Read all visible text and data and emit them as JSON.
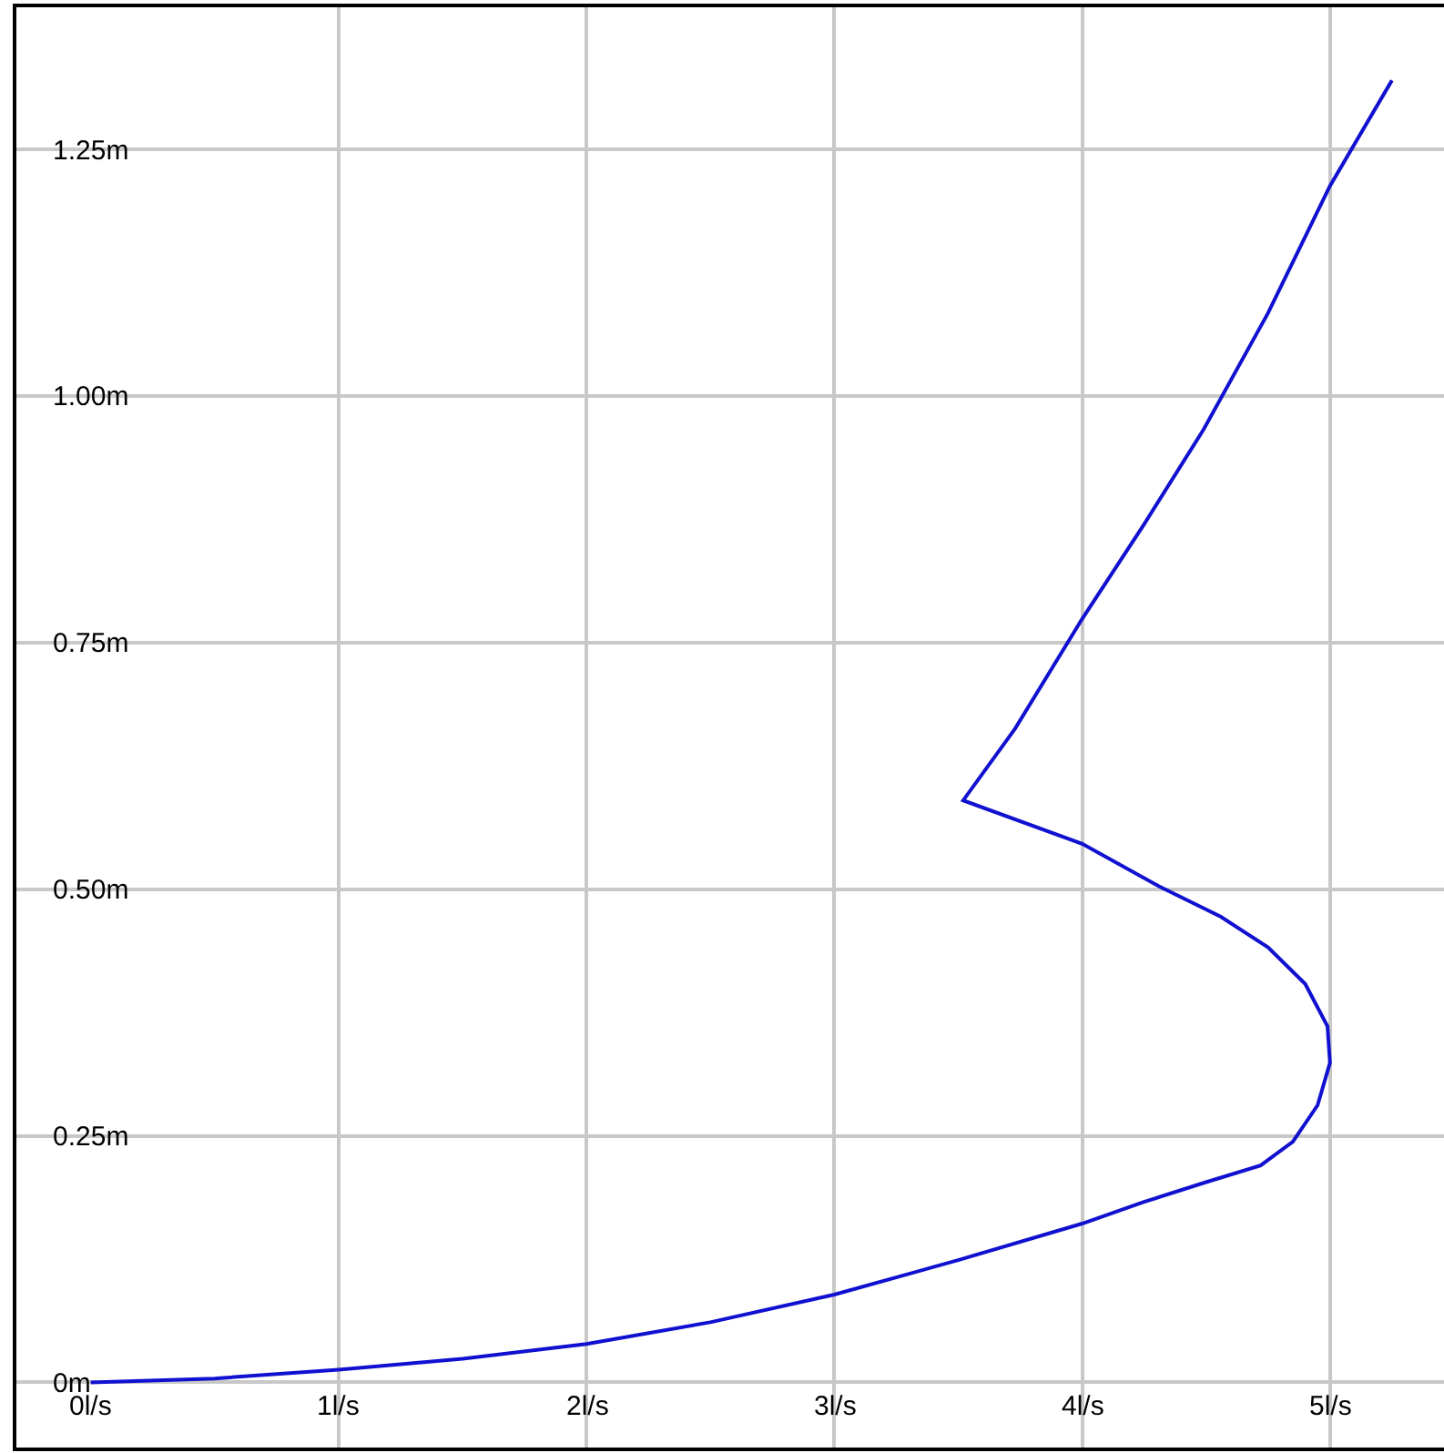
{
  "chart_data": {
    "type": "line",
    "grid": true,
    "marker": "none",
    "line_style": "solid",
    "xlim": [
      -0.3,
      5.46
    ],
    "ylim": [
      -0.066,
      1.394
    ],
    "xticks": [
      {
        "value": 0,
        "label": "0l/s"
      },
      {
        "value": 1,
        "label": "1l/s"
      },
      {
        "value": 2,
        "label": "2l/s"
      },
      {
        "value": 3,
        "label": "3l/s"
      },
      {
        "value": 4,
        "label": "4l/s"
      },
      {
        "value": 5,
        "label": "5l/s"
      }
    ],
    "yticks": [
      {
        "value": 0,
        "label": "0m"
      },
      {
        "value": 0.25,
        "label": "0.25m"
      },
      {
        "value": 0.5,
        "label": "0.50m"
      },
      {
        "value": 0.75,
        "label": "0.75m"
      },
      {
        "value": 1.0,
        "label": "1.00m"
      },
      {
        "value": 1.25,
        "label": "1.25m"
      }
    ],
    "series": [
      {
        "color": "#1010d0",
        "x": [
          0,
          0.5,
          1,
          1.5,
          2,
          2.5,
          3,
          3.5,
          4,
          4.25,
          4.5,
          4.72,
          4.85,
          4.95,
          5.0,
          4.99,
          4.9,
          4.75,
          4.56,
          4.31,
          4.0,
          3.52,
          3.73,
          4.0,
          4.25,
          4.49,
          4.75,
          5.0,
          5.25
        ],
        "values": [
          0,
          0.004,
          0.013,
          0.024,
          0.039,
          0.061,
          0.089,
          0.124,
          0.161,
          0.183,
          0.203,
          0.22,
          0.244,
          0.281,
          0.324,
          0.361,
          0.404,
          0.441,
          0.472,
          0.503,
          0.546,
          0.59,
          0.663,
          0.774,
          0.87,
          0.966,
          1.084,
          1.213,
          1.32
        ]
      }
    ]
  }
}
